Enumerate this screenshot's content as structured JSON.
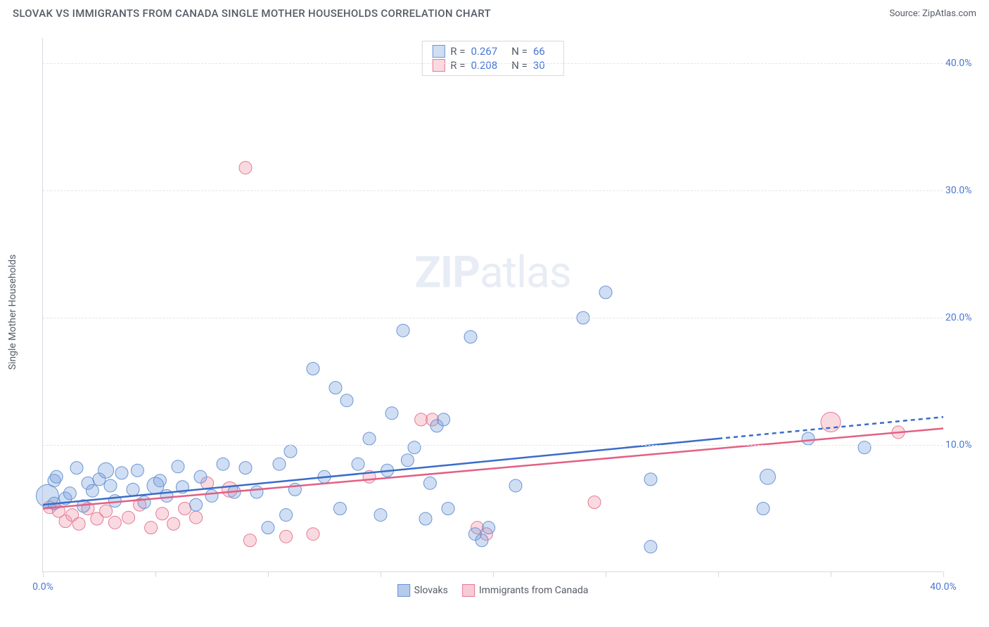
{
  "title": "SLOVAK VS IMMIGRANTS FROM CANADA SINGLE MOTHER HOUSEHOLDS CORRELATION CHART",
  "source": "Source: ZipAtlas.com",
  "y_axis_label": "Single Mother Households",
  "watermark_zip": "ZIP",
  "watermark_atlas": "atlas",
  "chart": {
    "type": "scatter",
    "xlim": [
      0,
      40
    ],
    "ylim": [
      0,
      42
    ],
    "x_ticks": [
      0,
      5,
      10,
      15,
      20,
      25,
      30,
      35,
      40
    ],
    "x_tick_labels": {
      "0": "0.0%",
      "40": "40.0%"
    },
    "y_gridlines": [
      10,
      20,
      30,
      40
    ],
    "y_tick_labels": [
      "10.0%",
      "20.0%",
      "30.0%",
      "40.0%"
    ],
    "background_color": "#ffffff",
    "grid_color": "#e3e5ea",
    "axis_color": "#d6d9e0",
    "label_color": "#4a77d4",
    "title_color": "#555b66",
    "title_fontsize": 15,
    "label_fontsize": 14,
    "marker_radius_default": 9,
    "series": [
      {
        "name": "Slovaks",
        "fill": "rgba(120,160,220,0.35)",
        "stroke": "#6a94d4",
        "R": "0.267",
        "N": "66",
        "points": [
          [
            0.2,
            6.0,
            16
          ],
          [
            0.5,
            7.2,
            9
          ],
          [
            0.5,
            5.4,
            9
          ],
          [
            0.6,
            7.5,
            9
          ],
          [
            1.0,
            5.8,
            9
          ],
          [
            1.2,
            6.2,
            9
          ],
          [
            1.5,
            8.2,
            9
          ],
          [
            1.8,
            5.2,
            9
          ],
          [
            2.0,
            7.0,
            9
          ],
          [
            2.2,
            6.4,
            9
          ],
          [
            2.5,
            7.3,
            9
          ],
          [
            2.8,
            8.0,
            11
          ],
          [
            3.0,
            6.8,
            9
          ],
          [
            3.2,
            5.6,
            9
          ],
          [
            3.5,
            7.8,
            9
          ],
          [
            4.0,
            6.5,
            9
          ],
          [
            4.2,
            8.0,
            9
          ],
          [
            4.5,
            5.5,
            9
          ],
          [
            5.0,
            6.8,
            12
          ],
          [
            5.2,
            7.2,
            9
          ],
          [
            5.5,
            6.0,
            9
          ],
          [
            6.0,
            8.3,
            9
          ],
          [
            6.2,
            6.7,
            9
          ],
          [
            6.8,
            5.3,
            9
          ],
          [
            7.0,
            7.5,
            9
          ],
          [
            7.5,
            6.0,
            9
          ],
          [
            8.0,
            8.5,
            9
          ],
          [
            8.5,
            6.3,
            9
          ],
          [
            9.0,
            8.2,
            9
          ],
          [
            9.5,
            6.3,
            9
          ],
          [
            10.0,
            3.5,
            9
          ],
          [
            10.5,
            8.5,
            9
          ],
          [
            11.0,
            9.5,
            9
          ],
          [
            11.2,
            6.5,
            9
          ],
          [
            10.8,
            4.5,
            9
          ],
          [
            12.0,
            16.0,
            9
          ],
          [
            12.5,
            7.5,
            9
          ],
          [
            13.0,
            14.5,
            9
          ],
          [
            13.2,
            5.0,
            9
          ],
          [
            13.5,
            13.5,
            9
          ],
          [
            14.0,
            8.5,
            9
          ],
          [
            14.5,
            10.5,
            9
          ],
          [
            15.0,
            4.5,
            9
          ],
          [
            15.3,
            8.0,
            9
          ],
          [
            15.5,
            12.5,
            9
          ],
          [
            16.0,
            19.0,
            9
          ],
          [
            16.2,
            8.8,
            9
          ],
          [
            16.5,
            9.8,
            9
          ],
          [
            17.0,
            4.2,
            9
          ],
          [
            17.2,
            7.0,
            9
          ],
          [
            17.5,
            11.5,
            9
          ],
          [
            18.0,
            5.0,
            9
          ],
          [
            17.8,
            12.0,
            9
          ],
          [
            19.0,
            18.5,
            9
          ],
          [
            19.2,
            3.0,
            9
          ],
          [
            19.5,
            2.5,
            9
          ],
          [
            21.0,
            6.8,
            9
          ],
          [
            19.8,
            3.5,
            9
          ],
          [
            24.0,
            20.0,
            9
          ],
          [
            25.0,
            22.0,
            9
          ],
          [
            27.0,
            2.0,
            9
          ],
          [
            27.0,
            7.3,
            9
          ],
          [
            32.0,
            5.0,
            9
          ],
          [
            32.2,
            7.5,
            11
          ],
          [
            36.5,
            9.8,
            9
          ],
          [
            34.0,
            10.5,
            9
          ]
        ],
        "trend": {
          "x1": 0,
          "y1": 5.3,
          "x2": 30,
          "y2": 10.5,
          "x2_dash": 40,
          "y2_dash": 12.2,
          "stroke": "#3a6cc8",
          "width": 2.5
        }
      },
      {
        "name": "Immigrants from Canada",
        "fill": "rgba(240,150,170,0.35)",
        "stroke": "#e47a94",
        "R": "0.208",
        "N": "30",
        "points": [
          [
            0.3,
            5.1,
            9
          ],
          [
            0.7,
            4.8,
            9
          ],
          [
            1.0,
            4.0,
            9
          ],
          [
            1.3,
            4.5,
            9
          ],
          [
            1.6,
            3.8,
            9
          ],
          [
            2.0,
            5.0,
            9
          ],
          [
            2.4,
            4.2,
            9
          ],
          [
            2.8,
            4.8,
            9
          ],
          [
            3.2,
            3.9,
            9
          ],
          [
            3.8,
            4.3,
            9
          ],
          [
            4.3,
            5.3,
            9
          ],
          [
            4.8,
            3.5,
            9
          ],
          [
            5.3,
            4.6,
            9
          ],
          [
            5.8,
            3.8,
            9
          ],
          [
            6.3,
            5.0,
            9
          ],
          [
            6.8,
            4.3,
            9
          ],
          [
            7.3,
            7.0,
            9
          ],
          [
            8.3,
            6.5,
            11
          ],
          [
            9.0,
            31.8,
            9
          ],
          [
            9.2,
            2.5,
            9
          ],
          [
            10.8,
            2.8,
            9
          ],
          [
            12.0,
            3.0,
            9
          ],
          [
            14.5,
            7.5,
            9
          ],
          [
            16.8,
            12.0,
            9
          ],
          [
            17.3,
            12.0,
            9
          ],
          [
            19.3,
            3.5,
            9
          ],
          [
            19.7,
            3.0,
            9
          ],
          [
            24.5,
            5.5,
            9
          ],
          [
            35.0,
            11.8,
            14
          ],
          [
            38.0,
            11.0,
            9
          ]
        ],
        "trend": {
          "x1": 0,
          "y1": 5.0,
          "x2": 40,
          "y2": 11.3,
          "stroke": "#e26084",
          "width": 2.5
        }
      }
    ]
  },
  "legend_top": {
    "r_label": "R =",
    "n_label": "N ="
  },
  "legend_bottom": [
    {
      "label": "Slovaks",
      "fill": "rgba(120,160,220,0.55)",
      "stroke": "#6a94d4"
    },
    {
      "label": "Immigrants from Canada",
      "fill": "rgba(240,160,180,0.55)",
      "stroke": "#e47a94"
    }
  ]
}
